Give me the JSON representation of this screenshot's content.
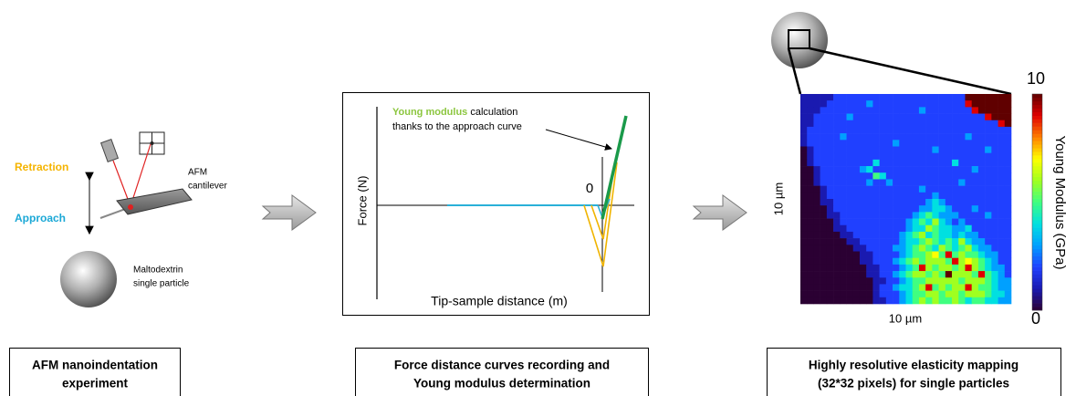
{
  "panel1": {
    "retraction": "Retraction",
    "approach": "Approach",
    "cantilever_label": [
      "AFM",
      "cantilever"
    ],
    "particle_label": [
      "Maltodextrin",
      "single particle"
    ],
    "caption": [
      "AFM nanoindentation",
      "experiment"
    ]
  },
  "panel2": {
    "annotation_highlight": "Young modulus",
    "annotation_rest": "calculation",
    "annotation_line2": "thanks to the approach curve",
    "origin": "0",
    "y_label": "Force (N)",
    "x_label": "Tip-sample distance (m)",
    "caption": [
      "Force distance curves recording and",
      "Young modulus determination"
    ]
  },
  "panel3": {
    "x_size_label": "10 µm",
    "y_size_label": "10 µm",
    "colorbar_label": "Young Modulus (GPa)",
    "colorbar_max": 10,
    "colorbar_min": 0,
    "colormap": [
      "#2b0033",
      "#1a1ab0",
      "#2040ff",
      "#00a0ff",
      "#00e0e0",
      "#40ff80",
      "#a0ff20",
      "#ffff00",
      "#ff8000",
      "#e00000",
      "#600000"
    ],
    "caption": [
      "Highly resolutive elasticity mapping",
      "(32*32 pixels) for single particles"
    ],
    "values": [
      [
        1,
        1,
        1,
        1,
        1,
        2,
        2,
        2,
        2,
        2,
        2,
        2,
        2,
        2,
        2,
        2,
        2,
        2,
        2,
        2,
        2,
        2,
        2,
        2,
        2,
        10,
        10,
        10,
        10,
        10,
        10,
        10
      ],
      [
        1,
        1,
        1,
        1,
        2,
        2,
        2,
        2,
        2,
        2,
        3,
        2,
        2,
        2,
        2,
        2,
        2,
        2,
        2,
        2,
        2,
        2,
        2,
        2,
        2,
        9,
        10,
        10,
        10,
        10,
        10,
        10
      ],
      [
        1,
        1,
        1,
        2,
        2,
        2,
        2,
        2,
        2,
        2,
        2,
        2,
        2,
        2,
        2,
        2,
        2,
        2,
        3,
        2,
        2,
        2,
        2,
        2,
        2,
        2,
        9,
        10,
        10,
        10,
        10,
        10
      ],
      [
        1,
        1,
        2,
        2,
        2,
        2,
        2,
        3,
        2,
        2,
        2,
        2,
        2,
        2,
        2,
        2,
        2,
        2,
        2,
        2,
        2,
        2,
        2,
        2,
        2,
        2,
        2,
        2,
        9,
        10,
        10,
        10
      ],
      [
        1,
        1,
        2,
        2,
        2,
        2,
        2,
        2,
        2,
        2,
        2,
        2,
        2,
        2,
        2,
        2,
        2,
        2,
        2,
        2,
        2,
        2,
        2,
        2,
        2,
        2,
        2,
        2,
        2,
        2,
        9,
        10
      ],
      [
        1,
        2,
        2,
        2,
        2,
        2,
        2,
        2,
        2,
        2,
        2,
        2,
        2,
        2,
        2,
        2,
        2,
        2,
        2,
        2,
        2,
        2,
        2,
        2,
        2,
        2,
        2,
        2,
        2,
        2,
        2,
        2
      ],
      [
        1,
        2,
        2,
        2,
        2,
        2,
        3,
        2,
        2,
        2,
        2,
        2,
        2,
        2,
        2,
        2,
        2,
        2,
        2,
        2,
        2,
        2,
        2,
        2,
        2,
        3,
        2,
        2,
        2,
        2,
        2,
        2
      ],
      [
        1,
        2,
        2,
        2,
        2,
        2,
        2,
        2,
        2,
        2,
        2,
        2,
        2,
        2,
        3,
        2,
        2,
        2,
        2,
        2,
        2,
        2,
        2,
        2,
        2,
        2,
        2,
        2,
        2,
        2,
        2,
        2
      ],
      [
        0,
        1,
        2,
        2,
        2,
        2,
        2,
        2,
        2,
        2,
        2,
        2,
        2,
        2,
        2,
        2,
        2,
        2,
        2,
        2,
        3,
        2,
        2,
        2,
        2,
        2,
        2,
        2,
        3,
        2,
        2,
        2
      ],
      [
        0,
        1,
        2,
        2,
        2,
        2,
        2,
        2,
        2,
        2,
        2,
        2,
        2,
        2,
        2,
        2,
        2,
        2,
        2,
        2,
        2,
        2,
        2,
        2,
        2,
        2,
        2,
        2,
        2,
        2,
        2,
        2
      ],
      [
        0,
        1,
        2,
        2,
        2,
        2,
        2,
        2,
        2,
        2,
        2,
        4,
        2,
        2,
        2,
        2,
        2,
        2,
        2,
        2,
        2,
        2,
        2,
        4,
        2,
        2,
        2,
        2,
        2,
        2,
        2,
        2
      ],
      [
        0,
        0,
        1,
        2,
        2,
        2,
        2,
        2,
        2,
        3,
        4,
        2,
        2,
        2,
        2,
        2,
        2,
        2,
        2,
        2,
        2,
        2,
        2,
        2,
        2,
        2,
        3,
        2,
        2,
        2,
        2,
        2
      ],
      [
        0,
        0,
        1,
        2,
        2,
        2,
        2,
        2,
        2,
        2,
        2,
        5,
        4,
        2,
        2,
        2,
        2,
        2,
        2,
        2,
        2,
        2,
        2,
        2,
        2,
        2,
        2,
        2,
        2,
        2,
        2,
        2
      ],
      [
        0,
        0,
        1,
        2,
        2,
        2,
        2,
        2,
        2,
        2,
        3,
        2,
        2,
        3,
        2,
        2,
        2,
        2,
        2,
        2,
        2,
        2,
        2,
        2,
        3,
        2,
        2,
        2,
        2,
        2,
        2,
        2
      ],
      [
        0,
        0,
        0,
        1,
        2,
        2,
        2,
        2,
        2,
        2,
        2,
        2,
        2,
        2,
        2,
        2,
        2,
        2,
        3,
        2,
        2,
        2,
        2,
        2,
        2,
        2,
        2,
        2,
        2,
        2,
        2,
        2
      ],
      [
        0,
        0,
        0,
        1,
        2,
        2,
        2,
        2,
        2,
        2,
        2,
        2,
        2,
        2,
        2,
        2,
        2,
        2,
        2,
        2,
        3,
        2,
        2,
        2,
        2,
        2,
        2,
        2,
        2,
        2,
        2,
        2
      ],
      [
        0,
        0,
        0,
        1,
        1,
        2,
        2,
        2,
        2,
        2,
        2,
        2,
        2,
        2,
        2,
        2,
        2,
        2,
        2,
        3,
        4,
        3,
        2,
        2,
        2,
        2,
        2,
        2,
        2,
        2,
        2,
        2
      ],
      [
        0,
        0,
        0,
        0,
        1,
        2,
        2,
        2,
        2,
        2,
        2,
        2,
        2,
        2,
        2,
        2,
        2,
        2,
        3,
        3,
        4,
        4,
        3,
        2,
        2,
        2,
        3,
        2,
        2,
        2,
        2,
        2
      ],
      [
        0,
        0,
        0,
        0,
        1,
        1,
        2,
        2,
        2,
        2,
        2,
        2,
        2,
        2,
        2,
        2,
        2,
        3,
        4,
        5,
        4,
        3,
        3,
        3,
        2,
        2,
        2,
        2,
        3,
        2,
        2,
        2
      ],
      [
        0,
        0,
        0,
        0,
        0,
        1,
        2,
        2,
        2,
        2,
        2,
        2,
        2,
        2,
        2,
        2,
        3,
        4,
        5,
        4,
        6,
        4,
        3,
        2,
        3,
        2,
        2,
        2,
        2,
        2,
        2,
        2
      ],
      [
        0,
        0,
        0,
        0,
        0,
        1,
        1,
        2,
        2,
        2,
        2,
        2,
        2,
        2,
        2,
        2,
        3,
        4,
        4,
        6,
        5,
        4,
        4,
        3,
        3,
        4,
        2,
        2,
        2,
        2,
        2,
        2
      ],
      [
        0,
        0,
        0,
        0,
        0,
        0,
        1,
        1,
        2,
        2,
        2,
        2,
        2,
        2,
        2,
        3,
        4,
        5,
        6,
        4,
        5,
        4,
        4,
        3,
        4,
        3,
        3,
        2,
        2,
        2,
        2,
        2
      ],
      [
        0,
        0,
        0,
        0,
        0,
        0,
        0,
        1,
        1,
        2,
        2,
        2,
        2,
        2,
        2,
        3,
        4,
        4,
        5,
        6,
        5,
        4,
        5,
        4,
        6,
        4,
        3,
        3,
        2,
        2,
        2,
        2
      ],
      [
        0,
        0,
        0,
        0,
        0,
        0,
        0,
        0,
        1,
        1,
        2,
        2,
        2,
        2,
        3,
        3,
        4,
        5,
        6,
        5,
        4,
        6,
        5,
        4,
        5,
        6,
        4,
        3,
        3,
        2,
        2,
        2
      ],
      [
        0,
        0,
        0,
        0,
        0,
        0,
        0,
        0,
        0,
        1,
        1,
        2,
        2,
        2,
        2,
        3,
        4,
        5,
        5,
        6,
        7,
        5,
        9,
        5,
        6,
        5,
        5,
        4,
        3,
        3,
        2,
        2
      ],
      [
        0,
        0,
        0,
        0,
        0,
        0,
        0,
        0,
        0,
        1,
        1,
        2,
        2,
        2,
        3,
        4,
        5,
        6,
        5,
        6,
        6,
        6,
        5,
        9,
        6,
        7,
        6,
        5,
        4,
        3,
        2,
        2
      ],
      [
        0,
        0,
        0,
        0,
        0,
        0,
        0,
        0,
        0,
        0,
        1,
        1,
        2,
        2,
        2,
        3,
        4,
        5,
        9,
        6,
        5,
        6,
        6,
        5,
        6,
        9,
        6,
        5,
        4,
        3,
        3,
        2
      ],
      [
        0,
        0,
        0,
        0,
        0,
        0,
        0,
        0,
        0,
        0,
        1,
        1,
        2,
        2,
        3,
        4,
        5,
        6,
        6,
        5,
        6,
        5,
        10,
        6,
        6,
        6,
        5,
        9,
        5,
        4,
        3,
        2
      ],
      [
        0,
        0,
        0,
        0,
        0,
        0,
        0,
        0,
        0,
        0,
        0,
        1,
        1,
        2,
        2,
        3,
        4,
        5,
        5,
        6,
        6,
        6,
        6,
        6,
        5,
        6,
        6,
        6,
        5,
        4,
        3,
        3
      ],
      [
        0,
        0,
        0,
        0,
        0,
        0,
        0,
        0,
        0,
        0,
        0,
        1,
        2,
        2,
        3,
        4,
        4,
        5,
        6,
        9,
        5,
        6,
        5,
        6,
        6,
        9,
        6,
        5,
        5,
        4,
        3,
        3
      ],
      [
        0,
        0,
        0,
        0,
        0,
        0,
        0,
        0,
        0,
        0,
        0,
        1,
        2,
        2,
        2,
        3,
        4,
        5,
        5,
        6,
        6,
        5,
        6,
        6,
        5,
        6,
        6,
        6,
        5,
        4,
        4,
        3
      ],
      [
        0,
        0,
        0,
        0,
        0,
        0,
        0,
        0,
        0,
        0,
        0,
        1,
        1,
        2,
        2,
        3,
        4,
        5,
        6,
        5,
        6,
        5,
        5,
        6,
        5,
        4,
        5,
        5,
        4,
        4,
        3,
        3
      ]
    ]
  }
}
